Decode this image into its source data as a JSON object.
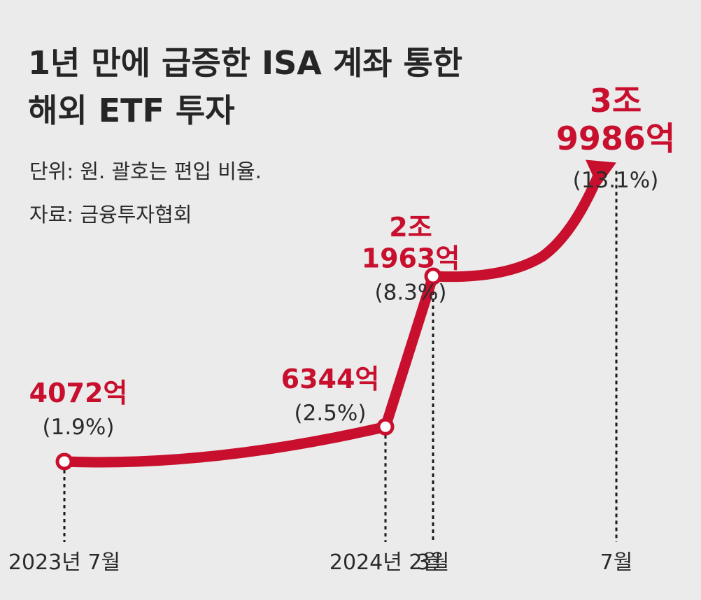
{
  "title_lines": [
    "1년 만에 급증한 ISA 계좌 통한",
    "해외 ETF 투자"
  ],
  "unit_note": "단위: 원. 괄호는 편입 비율.",
  "source_note": "자료: 금융투자협회",
  "colors": {
    "background": "#ebebeb",
    "line": "#c8102e",
    "value_text": "#c8102e",
    "text": "#2b2b2b"
  },
  "chart_data": {
    "type": "line",
    "title": "1년 만에 급증한 ISA 계좌 통한 해외 ETF 투자",
    "unit": "원",
    "categories": [
      "2023년 7월",
      "2024년 2월",
      "3월",
      "7월"
    ],
    "values_won_eok": [
      4072,
      6344,
      21963,
      39986
    ],
    "value_labels": [
      [
        "4072억"
      ],
      [
        "6344억"
      ],
      [
        "2조",
        "1963억"
      ],
      [
        "3조",
        "9986억"
      ]
    ],
    "share_labels": [
      "(1.9%)",
      "(2.5%)",
      "(8.3%)",
      "(13.1%)"
    ],
    "share_percent": [
      1.9,
      2.5,
      8.3,
      13.1
    ],
    "xlabel": "",
    "ylabel": "",
    "grid": false,
    "legend": "none",
    "last_point_marker": "arrow"
  }
}
